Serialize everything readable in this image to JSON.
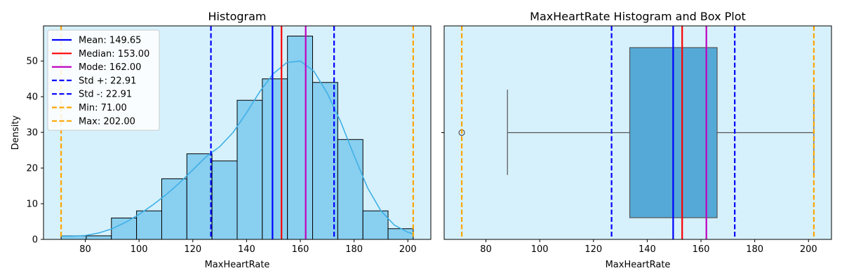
{
  "chart_data": [
    {
      "type": "histogram",
      "title": "Histogram",
      "xlabel": "MaxHeartRate",
      "ylabel": "Density",
      "xlim": [
        64.45,
        208.55
      ],
      "ylim": [
        0,
        59.85
      ],
      "xticks": [
        "80",
        "100",
        "120",
        "140",
        "160",
        "180",
        "200"
      ],
      "yticks": [
        "0",
        "10",
        "20",
        "30",
        "40",
        "50"
      ],
      "bin_edges": [
        71.0,
        80.36,
        89.71,
        99.07,
        108.43,
        117.79,
        127.14,
        136.5,
        145.86,
        155.21,
        164.57,
        173.93,
        183.29,
        192.64,
        202.0
      ],
      "counts": [
        1,
        1,
        6,
        8,
        17,
        24,
        22,
        39,
        45,
        57,
        44,
        28,
        8,
        3
      ],
      "kde": {
        "x": [
          71,
          75,
          80,
          85,
          90,
          95,
          100,
          105,
          110,
          115,
          120,
          125,
          130,
          135,
          140,
          145,
          150,
          155,
          160,
          165,
          170,
          175,
          180,
          185,
          190,
          195,
          200,
          202
        ],
        "y": [
          0.9,
          0.9,
          1.1,
          1.8,
          3.0,
          4.8,
          7.0,
          9.6,
          12.5,
          15.8,
          19.5,
          23.2,
          26.0,
          30.0,
          35.5,
          41.5,
          46.5,
          49.6,
          50.0,
          47.2,
          41.0,
          33.0,
          23.5,
          14.5,
          8.0,
          4.0,
          2.0,
          1.5
        ]
      },
      "bar_color": "#89cff0",
      "kde_color": "#3fb0e6",
      "background": "#d6f1fc",
      "grid": false,
      "legend_position": "upper-left",
      "reference_lines": [
        {
          "label": "Mean: 149.65",
          "value": 149.65,
          "color": "#0000ff",
          "style": "solid"
        },
        {
          "label": "Median: 153.00",
          "value": 153.0,
          "color": "#ff0000",
          "style": "solid"
        },
        {
          "label": "Mode: 162.00",
          "value": 162.0,
          "color": "#bf00bf",
          "style": "solid"
        },
        {
          "label": "Std +: 22.91",
          "value": 172.56,
          "color": "#0000ff",
          "style": "dashed"
        },
        {
          "label": "Std -: 22.91",
          "value": 126.74,
          "color": "#0000ff",
          "style": "dashed"
        },
        {
          "label": "Min: 71.00",
          "value": 71.0,
          "color": "#ffa500",
          "style": "dashed"
        },
        {
          "label": "Max: 202.00",
          "value": 202.0,
          "color": "#ffa500",
          "style": "dashed"
        }
      ]
    },
    {
      "type": "boxplot",
      "title": "MaxHeartRate Histogram and Box Plot",
      "xlabel": "MaxHeartRate",
      "xlim": [
        64.45,
        208.55
      ],
      "xticks": [
        "80",
        "100",
        "120",
        "140",
        "160",
        "180",
        "200"
      ],
      "box": {
        "q1": 133.5,
        "median": 153.0,
        "q3": 166.0,
        "whisker_low": 88.0,
        "whisker_high": 202.0,
        "outliers": [
          71.0
        ]
      },
      "box_color": "#55a9d6",
      "background": "#d6f1fc",
      "grid": false,
      "reference_lines": [
        {
          "value": 149.65,
          "color": "#0000ff",
          "style": "solid"
        },
        {
          "value": 153.0,
          "color": "#ff0000",
          "style": "solid"
        },
        {
          "value": 162.0,
          "color": "#bf00bf",
          "style": "solid"
        },
        {
          "value": 172.56,
          "color": "#0000ff",
          "style": "dashed"
        },
        {
          "value": 126.74,
          "color": "#0000ff",
          "style": "dashed"
        },
        {
          "value": 71.0,
          "color": "#ffa500",
          "style": "dashed"
        },
        {
          "value": 202.0,
          "color": "#ffa500",
          "style": "dashed"
        }
      ]
    }
  ]
}
